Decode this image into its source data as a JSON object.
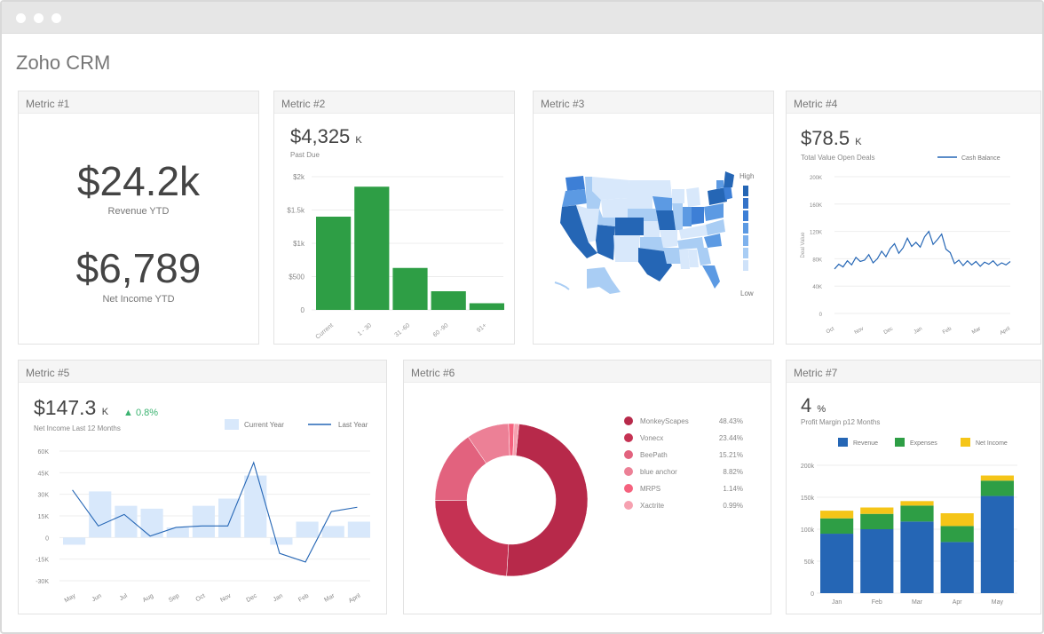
{
  "app": {
    "title": "Zoho CRM"
  },
  "colors": {
    "green": "#2e9e45",
    "blue": "#2566b5",
    "lightblue": "#d8e8fb",
    "yellow": "#f5c518",
    "crimson": "#b7294a"
  },
  "m1": {
    "header": "Metric #1",
    "value1": "$24.2k",
    "label1": "Revenue YTD",
    "value2": "$6,789",
    "label2": "Net Income YTD"
  },
  "m2": {
    "header": "Metric #2",
    "value": "$4,325",
    "unit": "K",
    "label": "Past Due"
  },
  "m3": {
    "header": "Metric #3",
    "legend_high": "High",
    "legend_low": "Low"
  },
  "m4": {
    "header": "Metric #4",
    "value": "$78.5",
    "unit": "K",
    "label": "Total Value Open Deals",
    "legend": "Cash Balance",
    "ylabel": "Deal Value"
  },
  "m5": {
    "header": "Metric #5",
    "value": "$147.3",
    "unit": "K",
    "change": "▲ 0.8%",
    "label": "Net Income Last 12 Months",
    "legend_current": "Current Year",
    "legend_last": "Last Year"
  },
  "m6": {
    "header": "Metric #6"
  },
  "m7": {
    "header": "Metric #7",
    "value": "4",
    "unit": "%",
    "label": "Profit Margin p12 Months",
    "legend": [
      "Revenue",
      "Expenses",
      "Net Income"
    ]
  },
  "chart_data": [
    {
      "id": "metric2",
      "type": "bar",
      "categories": [
        "Current",
        "1 - 30",
        "31 -60",
        "60 -90",
        "91+"
      ],
      "values": [
        1.4,
        1.85,
        0.63,
        0.28,
        0.1
      ],
      "yticks": [
        "$2k",
        "$1.5k",
        "$1k",
        "$500",
        "0"
      ],
      "ylim": [
        0,
        2
      ],
      "grid": true
    },
    {
      "id": "metric4",
      "type": "line",
      "series": [
        {
          "name": "Cash Balance",
          "values": [
            65,
            72,
            68,
            77,
            71,
            82,
            76,
            78,
            86,
            74,
            80,
            91,
            83,
            95,
            102,
            88,
            96,
            110,
            98,
            104,
            97,
            112,
            120,
            101,
            108,
            116,
            94,
            89,
            73,
            78,
            70,
            77,
            71,
            76,
            69,
            75,
            72,
            77,
            70,
            74,
            71,
            76
          ]
        }
      ],
      "xticks": [
        "Oct",
        "Nov",
        "Dec",
        "Jan",
        "Feb",
        "Mar",
        "April"
      ],
      "yticks": [
        "200K",
        "160K",
        "120K",
        "80K",
        "40K",
        "0"
      ],
      "ylim": [
        0,
        200
      ],
      "ylabel": "Deal Value",
      "legend": "top-right"
    },
    {
      "id": "metric5",
      "type": "bar",
      "categories": [
        "May",
        "Jun",
        "Jul",
        "Aug",
        "Sep",
        "Oct",
        "Nov",
        "Dec",
        "Jan",
        "Feb",
        "Mar",
        "April"
      ],
      "series": [
        {
          "name": "Current Year",
          "type": "bar",
          "values": [
            -5,
            32,
            22,
            20,
            7,
            22,
            27,
            43,
            -5,
            11,
            8,
            11
          ]
        },
        {
          "name": "Last Year",
          "type": "line",
          "values": [
            33,
            8,
            16,
            1,
            7,
            8,
            8,
            52,
            -11,
            -17,
            18,
            21
          ]
        }
      ],
      "yticks": [
        "60K",
        "45K",
        "30K",
        "15K",
        "0",
        "-15K",
        "-30K"
      ],
      "ylim": [
        -30,
        60
      ],
      "legend": "top-right"
    },
    {
      "id": "metric6",
      "type": "pie",
      "labels": [
        "MonkeyScapes",
        "Vonecx",
        "BeePath",
        "blue anchor",
        "MRPS",
        "Xactrite"
      ],
      "values": [
        48.43,
        23.44,
        15.21,
        8.82,
        1.14,
        0.99
      ],
      "display": [
        "48.43%",
        "23.44%",
        "15.21%",
        "8.82%",
        "1.14%",
        "0.99%"
      ],
      "colors": [
        "#b7294a",
        "#c53253",
        "#e2627e",
        "#ec8096",
        "#f5627e",
        "#f6a1b0"
      ]
    },
    {
      "id": "metric7",
      "type": "bar",
      "stacked": true,
      "categories": [
        "Jan",
        "Feb",
        "Mar",
        "Apr",
        "May"
      ],
      "series": [
        {
          "name": "Revenue",
          "values": [
            93,
            100,
            112,
            80,
            152
          ]
        },
        {
          "name": "Expenses",
          "values": [
            24,
            24,
            25,
            25,
            24
          ]
        },
        {
          "name": "Net Income",
          "values": [
            12,
            10,
            7,
            20,
            8
          ]
        }
      ],
      "yticks": [
        "200k",
        "150k",
        "100k",
        "50k",
        "0"
      ],
      "ylim": [
        0,
        200
      ],
      "legend": "top"
    }
  ]
}
